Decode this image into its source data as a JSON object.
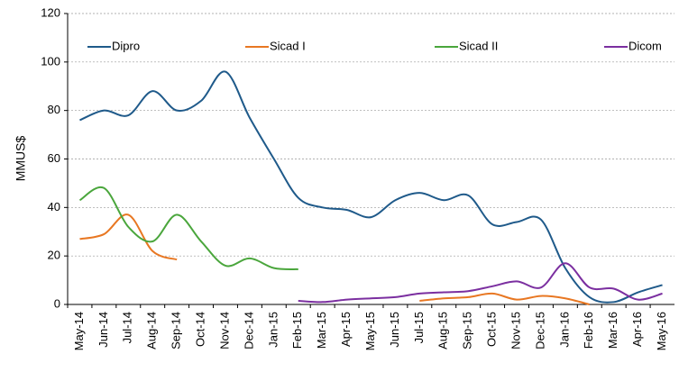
{
  "chart_data": {
    "type": "line",
    "y_label": "MMUS$",
    "categories": [
      "May-14",
      "Jun-14",
      "Jul-14",
      "Aug-14",
      "Sep-14",
      "Oct-14",
      "Nov-14",
      "Dec-14",
      "Jan-15",
      "Feb-15",
      "Mar-15",
      "Apr-15",
      "May-15",
      "Jun-15",
      "Jul-15",
      "Aug-15",
      "Sep-15",
      "Oct-15",
      "Nov-15",
      "Dec-15",
      "Jan-16",
      "Feb-16",
      "Mar-16",
      "Apr-16",
      "May-16"
    ],
    "series": [
      {
        "name": "Dipro",
        "color": "#1f5a8a",
        "values": [
          76,
          80,
          78,
          88,
          80,
          84,
          96,
          77,
          60,
          44,
          40,
          39,
          36,
          43,
          46,
          43,
          45,
          33,
          34,
          35,
          15,
          3,
          1,
          5,
          8
        ]
      },
      {
        "name": "Sicad I",
        "color": "#e87722",
        "values": [
          27,
          29,
          37,
          22,
          18.5,
          null,
          null,
          null,
          null,
          null,
          null,
          null,
          null,
          null,
          1.5,
          2.5,
          3,
          4.5,
          2,
          3.5,
          2.5,
          0,
          null,
          null,
          null
        ]
      },
      {
        "name": "Sicad II",
        "color": "#4aa63c",
        "values": [
          43,
          48,
          32,
          26,
          37,
          26,
          16,
          19,
          15,
          14.5,
          null,
          null,
          null,
          null,
          null,
          null,
          null,
          null,
          null,
          null,
          null,
          null,
          null,
          null,
          null
        ]
      },
      {
        "name": "Dicom",
        "color": "#7b2fa0",
        "values": [
          null,
          null,
          null,
          null,
          null,
          null,
          null,
          null,
          null,
          1.5,
          1,
          2,
          2.5,
          3,
          4.5,
          5,
          5.5,
          7.5,
          9.5,
          7,
          17,
          7,
          6.5,
          2,
          4.5
        ]
      }
    ],
    "ylim": [
      0,
      120
    ],
    "yticks": [
      0,
      20,
      40,
      60,
      80,
      100,
      120
    ],
    "grid": true,
    "legend": "top"
  }
}
